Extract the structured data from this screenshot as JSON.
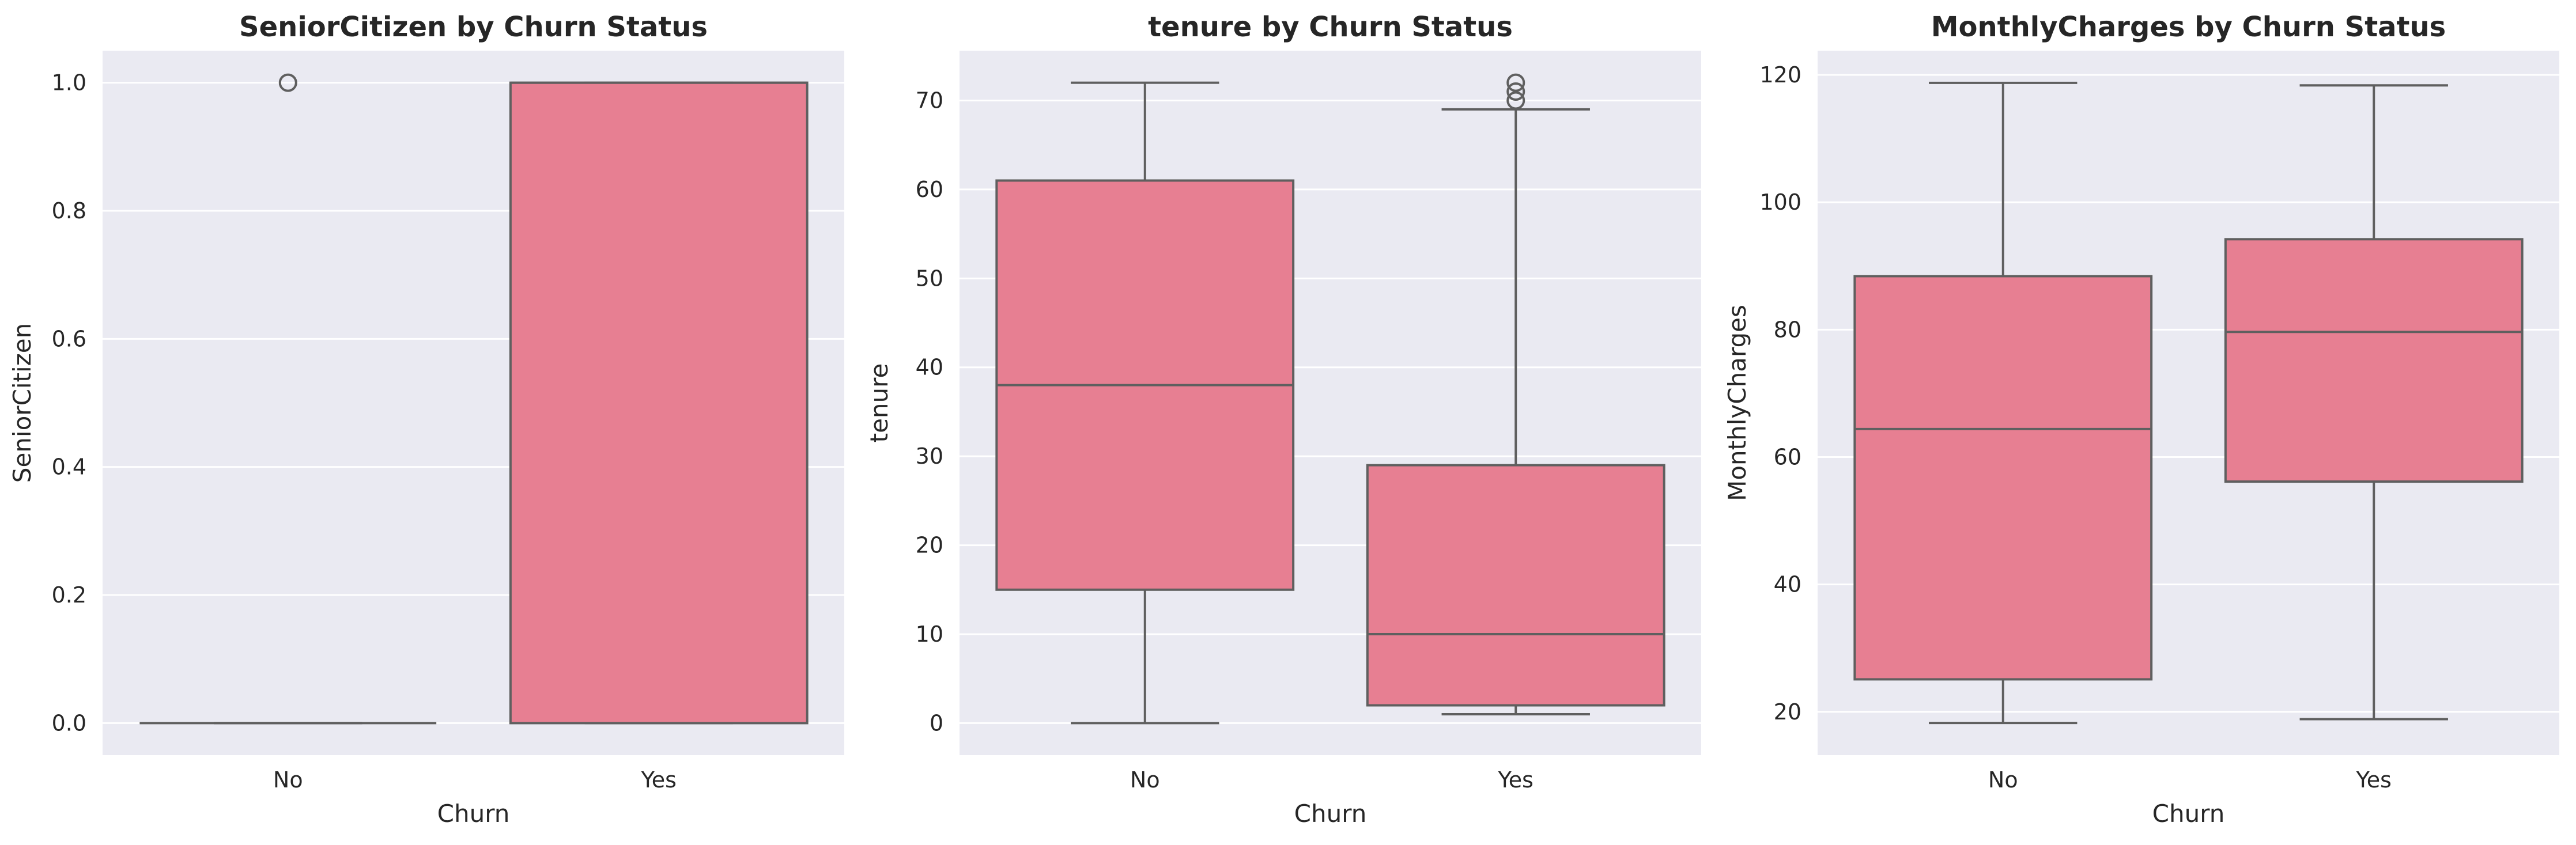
{
  "chart_data": [
    {
      "type": "box",
      "title": "SeniorCitizen by Churn Status",
      "xlabel": "Churn",
      "ylabel": "SeniorCitizen",
      "categories": [
        "No",
        "Yes"
      ],
      "ylim": [
        -0.05,
        1.05
      ],
      "yticks": [
        0.0,
        0.2,
        0.4,
        0.6,
        0.8,
        1.0
      ],
      "ytick_labels": [
        "0.0",
        "0.2",
        "0.4",
        "0.6",
        "0.8",
        "1.0"
      ],
      "boxes": [
        {
          "category": "No",
          "whislo": 0,
          "q1": 0,
          "med": 0,
          "q3": 0,
          "whishi": 0,
          "fliers": [
            1.0
          ]
        },
        {
          "category": "Yes",
          "whislo": 0,
          "q1": 0,
          "med": 1,
          "q3": 1,
          "whishi": 1,
          "fliers": []
        }
      ],
      "grid": true
    },
    {
      "type": "box",
      "title": "tenure by Churn Status",
      "xlabel": "Churn",
      "ylabel": "tenure",
      "categories": [
        "No",
        "Yes"
      ],
      "ylim": [
        -3.6,
        75.6
      ],
      "yticks": [
        0,
        10,
        20,
        30,
        40,
        50,
        60,
        70
      ],
      "ytick_labels": [
        "0",
        "10",
        "20",
        "30",
        "40",
        "50",
        "60",
        "70"
      ],
      "boxes": [
        {
          "category": "No",
          "whislo": 0,
          "q1": 15,
          "med": 38,
          "q3": 61,
          "whishi": 72,
          "fliers": []
        },
        {
          "category": "Yes",
          "whislo": 1,
          "q1": 2,
          "med": 10,
          "q3": 29,
          "whishi": 69,
          "fliers": [
            70,
            71,
            72
          ]
        }
      ],
      "grid": true
    },
    {
      "type": "box",
      "title": "MonthlyCharges by Churn Status",
      "xlabel": "Churn",
      "ylabel": "MonthlyCharges",
      "categories": [
        "No",
        "Yes"
      ],
      "ylim": [
        13.2,
        123.8
      ],
      "yticks": [
        20,
        40,
        60,
        80,
        100,
        120
      ],
      "ytick_labels": [
        "20",
        "40",
        "60",
        "80",
        "100",
        "120"
      ],
      "boxes": [
        {
          "category": "No",
          "whislo": 18.25,
          "q1": 25.1,
          "med": 64.4,
          "q3": 88.4,
          "whishi": 118.75,
          "fliers": []
        },
        {
          "category": "Yes",
          "whislo": 18.85,
          "q1": 56.15,
          "med": 79.65,
          "q3": 94.2,
          "whishi": 118.35,
          "fliers": []
        }
      ],
      "grid": true
    }
  ],
  "colors": {
    "box_fill": "#e77f92",
    "line": "#5f5f5f",
    "plot_bg": "#eaeaf2",
    "grid": "#ffffff",
    "text": "#262626"
  }
}
